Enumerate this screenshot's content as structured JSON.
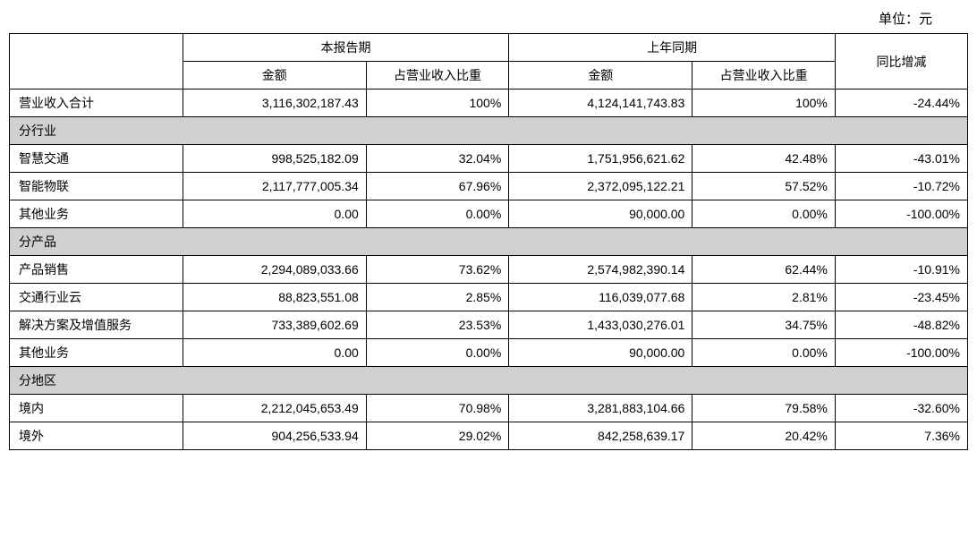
{
  "unit_label": "单位：元",
  "headers": {
    "row_label": "",
    "current_period": "本报告期",
    "prior_period": "上年同期",
    "amount": "金额",
    "pct_of_revenue": "占营业收入比重",
    "yoy_change": "同比增减"
  },
  "total_row": {
    "label": "营业收入合计",
    "curr_amount": "3,116,302,187.43",
    "curr_pct": "100%",
    "prior_amount": "4,124,141,743.83",
    "prior_pct": "100%",
    "change": "-24.44%"
  },
  "sections": [
    {
      "title": "分行业",
      "rows": [
        {
          "label": "智慧交通",
          "curr_amount": "998,525,182.09",
          "curr_pct": "32.04%",
          "prior_amount": "1,751,956,621.62",
          "prior_pct": "42.48%",
          "change": "-43.01%"
        },
        {
          "label": "智能物联",
          "curr_amount": "2,117,777,005.34",
          "curr_pct": "67.96%",
          "prior_amount": "2,372,095,122.21",
          "prior_pct": "57.52%",
          "change": "-10.72%"
        },
        {
          "label": "其他业务",
          "curr_amount": "0.00",
          "curr_pct": "0.00%",
          "prior_amount": "90,000.00",
          "prior_pct": "0.00%",
          "change": "-100.00%"
        }
      ]
    },
    {
      "title": "分产品",
      "rows": [
        {
          "label": "产品销售",
          "curr_amount": "2,294,089,033.66",
          "curr_pct": "73.62%",
          "prior_amount": "2,574,982,390.14",
          "prior_pct": "62.44%",
          "change": "-10.91%"
        },
        {
          "label": "交通行业云",
          "curr_amount": "88,823,551.08",
          "curr_pct": "2.85%",
          "prior_amount": "116,039,077.68",
          "prior_pct": "2.81%",
          "change": "-23.45%"
        },
        {
          "label": "解决方案及增值服务",
          "curr_amount": "733,389,602.69",
          "curr_pct": "23.53%",
          "prior_amount": "1,433,030,276.01",
          "prior_pct": "34.75%",
          "change": "-48.82%"
        },
        {
          "label": "其他业务",
          "curr_amount": "0.00",
          "curr_pct": "0.00%",
          "prior_amount": "90,000.00",
          "prior_pct": "0.00%",
          "change": "-100.00%"
        }
      ]
    },
    {
      "title": "分地区",
      "rows": [
        {
          "label": "境内",
          "curr_amount": "2,212,045,653.49",
          "curr_pct": "70.98%",
          "prior_amount": "3,281,883,104.66",
          "prior_pct": "79.58%",
          "change": "-32.60%"
        },
        {
          "label": "境外",
          "curr_amount": "904,256,533.94",
          "curr_pct": "29.02%",
          "prior_amount": "842,258,639.17",
          "prior_pct": "20.42%",
          "change": "7.36%"
        }
      ]
    }
  ]
}
